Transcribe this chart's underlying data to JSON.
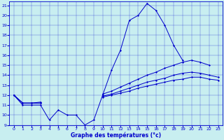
{
  "title": "Graphe des températures (°c)",
  "bg_color": "#c8eef0",
  "line_color": "#0000cc",
  "xlim": [
    -0.5,
    23.5
  ],
  "ylim": [
    9,
    21.4
  ],
  "xticks": [
    0,
    1,
    2,
    3,
    4,
    5,
    6,
    7,
    8,
    9,
    10,
    11,
    12,
    13,
    14,
    15,
    16,
    17,
    18,
    19,
    20,
    21,
    22,
    23
  ],
  "yticks": [
    9,
    10,
    11,
    12,
    13,
    14,
    15,
    16,
    17,
    18,
    19,
    20,
    21
  ],
  "line_main": [
    12,
    11,
    11,
    11,
    9.5,
    10.5,
    10,
    10,
    9,
    9.5,
    12,
    14.5,
    16.5,
    19.5,
    20,
    21.2,
    20.5,
    19,
    17,
    15.5,
    null,
    null,
    null,
    null
  ],
  "line_high": [
    12,
    11.2,
    11.2,
    11.3,
    null,
    null,
    null,
    null,
    null,
    null,
    12.1,
    12.4,
    12.8,
    13.2,
    13.6,
    14.0,
    14.3,
    14.7,
    15.0,
    15.3,
    15.5,
    15.3,
    15.0,
    null
  ],
  "line_mid2": [
    12,
    11.2,
    11.2,
    11.2,
    null,
    null,
    null,
    null,
    null,
    null,
    11.9,
    12.1,
    12.4,
    12.7,
    13.0,
    13.3,
    13.5,
    13.7,
    14.0,
    14.2,
    14.3,
    14.2,
    14.0,
    13.8
  ],
  "line_mid1": [
    12,
    11.2,
    11.2,
    11.2,
    null,
    null,
    null,
    null,
    null,
    null,
    11.8,
    12.0,
    12.2,
    12.4,
    12.7,
    12.9,
    13.1,
    13.3,
    13.5,
    13.6,
    13.8,
    13.8,
    13.6,
    13.5
  ]
}
